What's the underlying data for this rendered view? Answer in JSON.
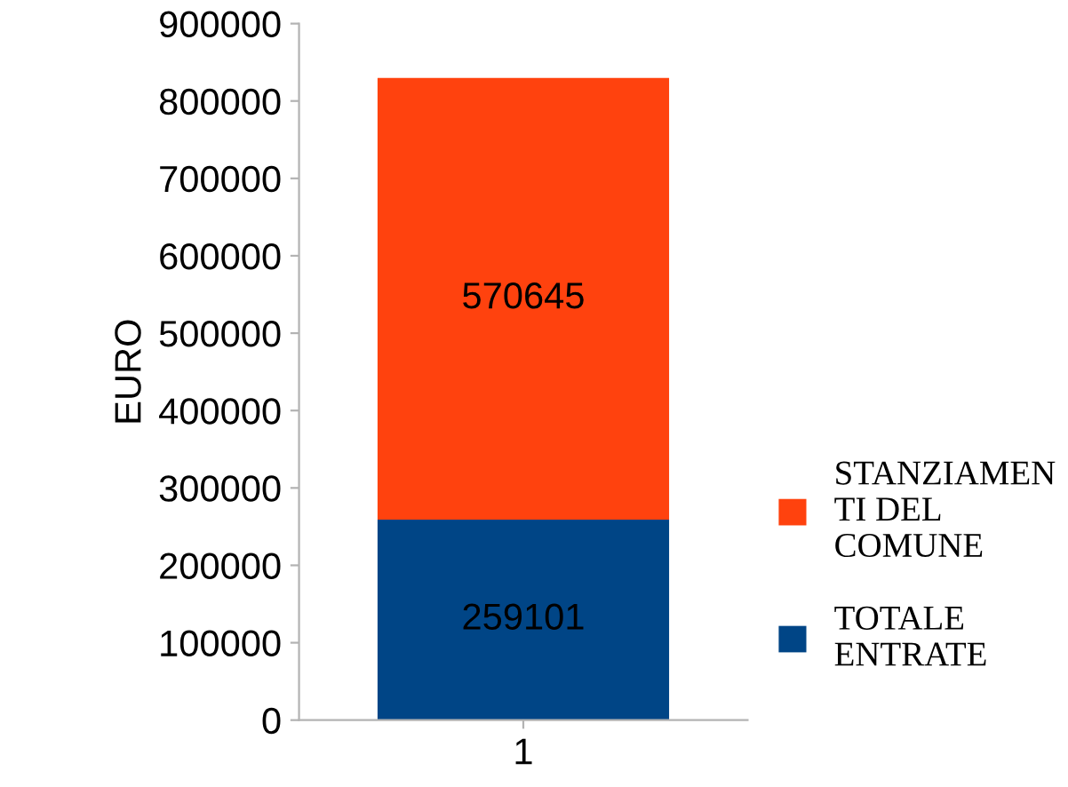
{
  "chart_data": {
    "type": "bar",
    "stacked": true,
    "categories": [
      "1"
    ],
    "ylabel": "EURO",
    "series": [
      {
        "name": "TOTALE ENTRATE",
        "color": "#004586",
        "values": [
          259101
        ]
      },
      {
        "name": "STANZIAMENTI DEL COMUNE",
        "color": "#ff420e",
        "values": [
          570645
        ]
      }
    ],
    "ylim": [
      0,
      900000
    ],
    "yticks": [
      0,
      100000,
      200000,
      300000,
      400000,
      500000,
      600000,
      700000,
      800000,
      900000
    ],
    "data_labels": true,
    "grid": false,
    "legend": "right"
  }
}
